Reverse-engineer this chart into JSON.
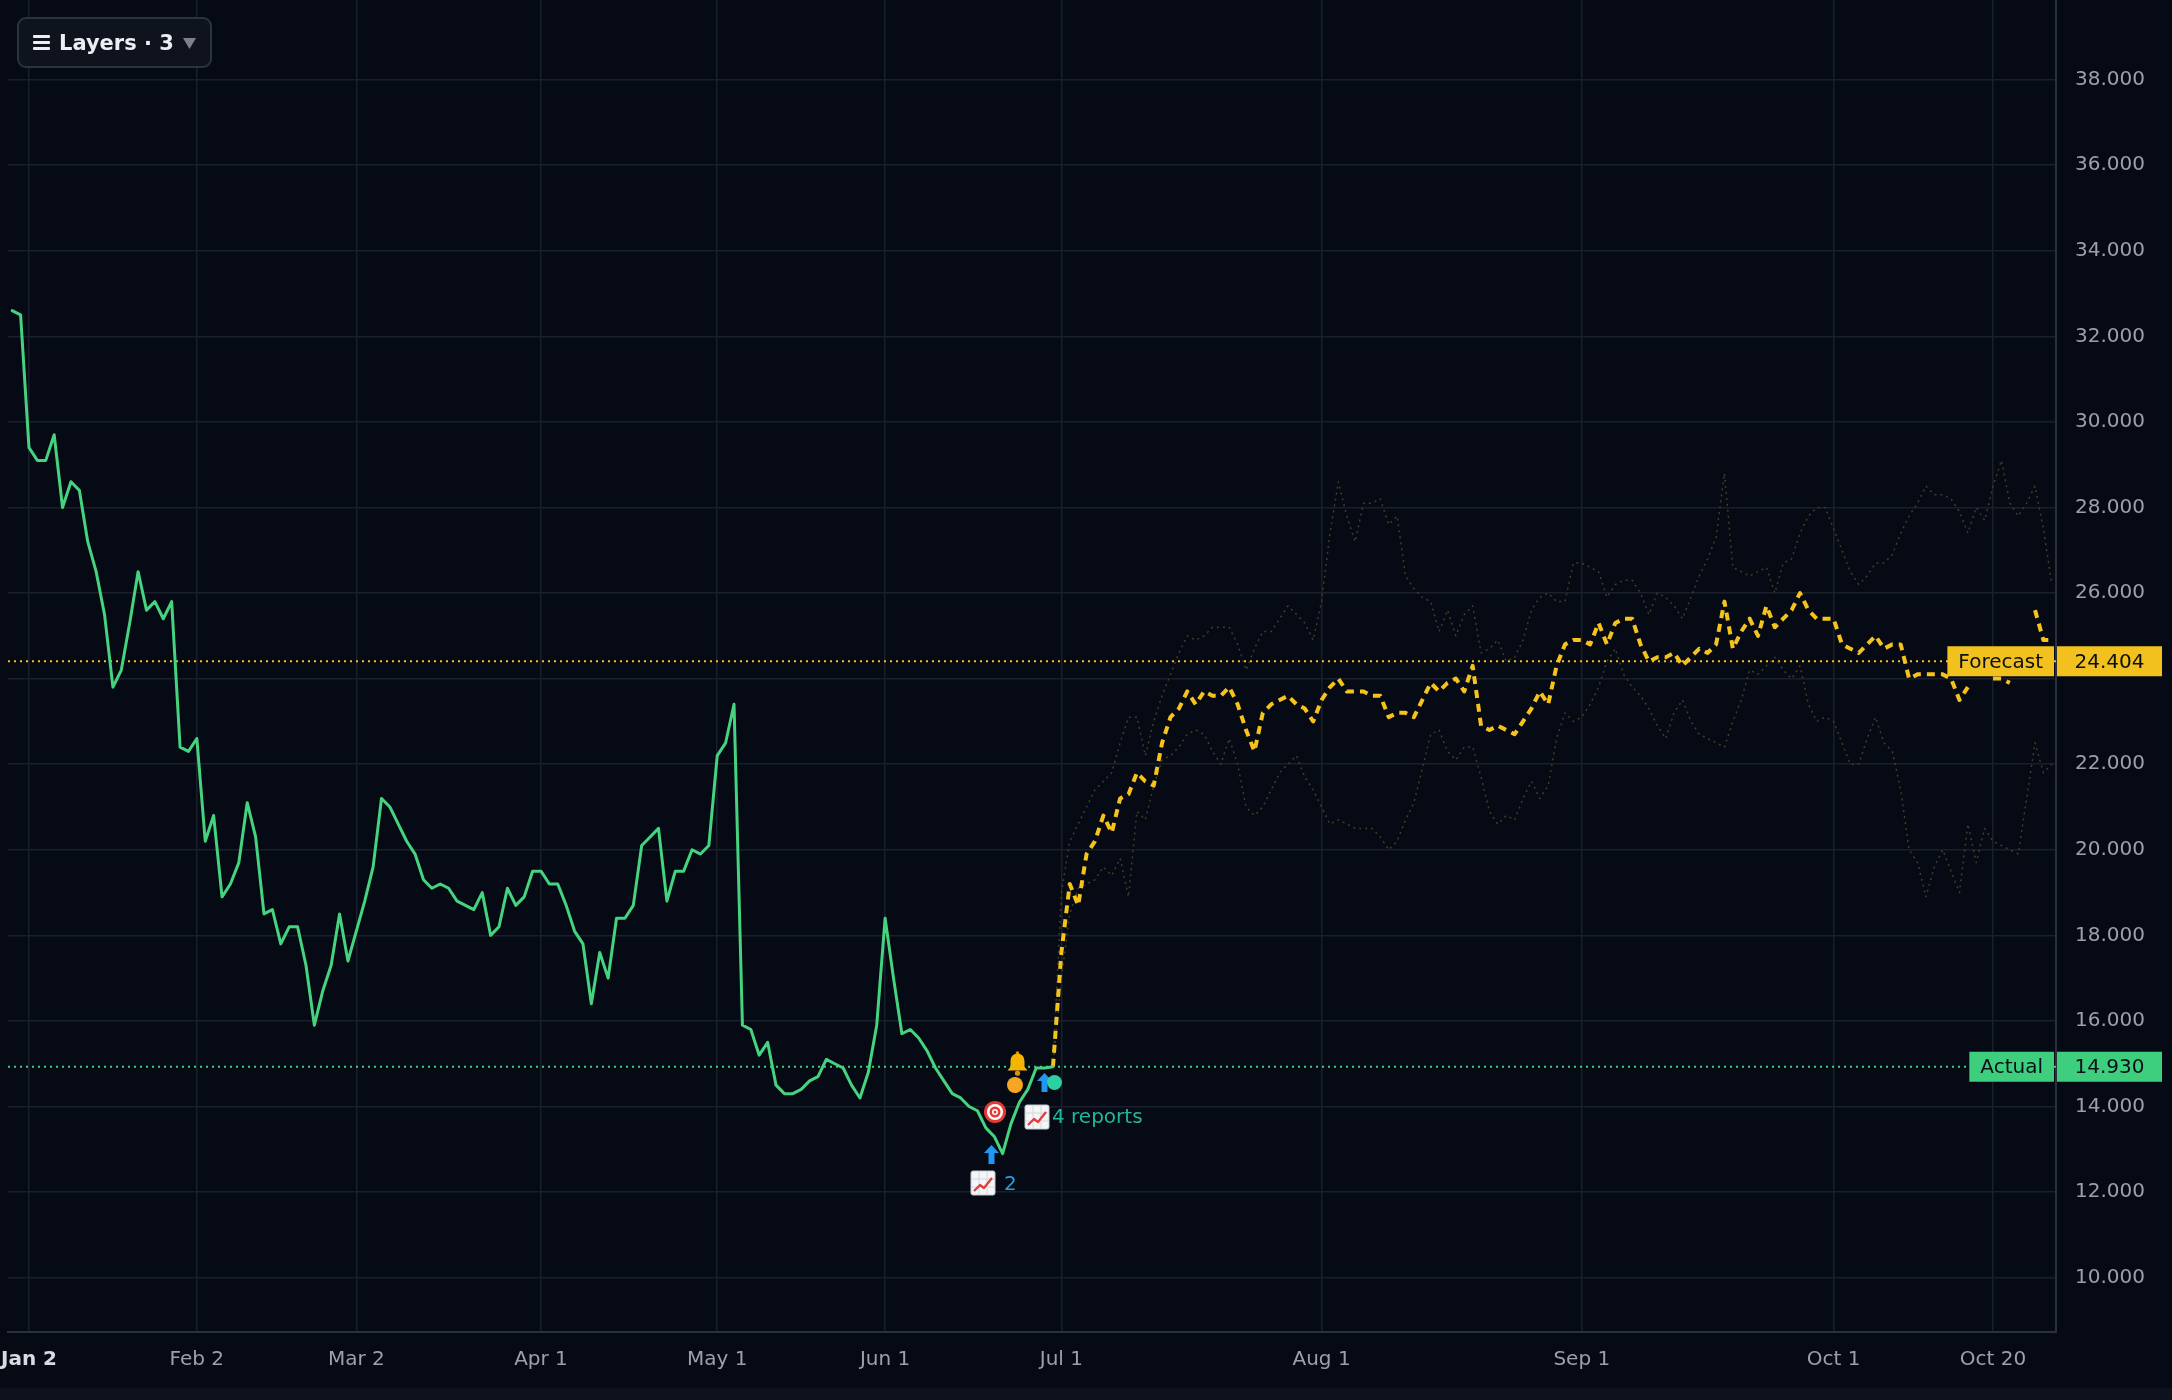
{
  "chart_data": {
    "type": "line",
    "categories": [
      null,
      null,
      "Jan 2",
      null,
      null,
      null,
      null,
      null,
      null,
      null,
      null,
      null,
      null,
      null,
      null,
      null,
      null,
      null,
      null,
      null,
      null,
      null,
      "Feb 2",
      null,
      null,
      null,
      null,
      null,
      null,
      null,
      null,
      null,
      null,
      null,
      null,
      null,
      null,
      null,
      null,
      null,
      null,
      "Mar 2",
      null,
      null,
      null,
      null,
      null,
      null,
      null,
      null,
      null,
      null,
      null,
      null,
      null,
      null,
      null,
      null,
      null,
      null,
      null,
      null,
      null,
      "Apr 1",
      null,
      null,
      null,
      null,
      null,
      null,
      null,
      null,
      null,
      null,
      null,
      null,
      null,
      null,
      null,
      null,
      null,
      null,
      null,
      null,
      "May 1",
      null,
      null,
      null,
      null,
      null,
      null,
      null,
      null,
      null,
      null,
      null,
      null,
      null,
      null,
      null,
      null,
      null,
      null,
      null,
      "Jun 1",
      null,
      null,
      null,
      null,
      null,
      null,
      null,
      null,
      null,
      null,
      null,
      null,
      null,
      null,
      null,
      null,
      null,
      null,
      null,
      null,
      "Jul 1",
      null,
      null,
      null,
      null,
      null,
      null,
      null,
      null,
      null,
      null,
      null,
      null,
      null,
      null,
      null,
      null,
      null,
      null,
      null,
      null,
      null,
      null,
      null,
      null,
      null,
      null,
      null,
      null,
      null,
      null,
      "Aug 1",
      null,
      null,
      null,
      null,
      null,
      null,
      null,
      null,
      null,
      null,
      null,
      null,
      null,
      null,
      null,
      null,
      null,
      null,
      null,
      null,
      null,
      null,
      null,
      null,
      null,
      null,
      null,
      null,
      null,
      null,
      "Sep 1",
      null,
      null,
      null,
      null,
      null,
      null,
      null,
      null,
      null,
      null,
      null,
      null,
      null,
      null,
      null,
      null,
      null,
      null,
      null,
      null,
      null,
      null,
      null,
      null,
      null,
      null,
      null,
      null,
      null,
      "Oct 1",
      null,
      null,
      null,
      null,
      null,
      null,
      null,
      null,
      null,
      null,
      null,
      null,
      null,
      null,
      null,
      null,
      null,
      null,
      "Oct 20",
      null,
      null,
      null,
      null,
      null,
      null,
      null
    ],
    "ylim": [
      8.73,
      39.86
    ],
    "yticks": [
      {
        "value": 10,
        "label": "10.000"
      },
      {
        "value": 12,
        "label": "12.000"
      },
      {
        "value": 14,
        "label": "14.000"
      },
      {
        "value": 16,
        "label": "16.000"
      },
      {
        "value": 18,
        "label": "18.000"
      },
      {
        "value": 20,
        "label": "20.000"
      },
      {
        "value": 22,
        "label": "22.000"
      },
      {
        "value": 24,
        "label": null
      },
      {
        "value": 26,
        "label": "26.000"
      },
      {
        "value": 28,
        "label": "28.000"
      },
      {
        "value": 30,
        "label": "30.000"
      },
      {
        "value": 32,
        "label": "32.000"
      },
      {
        "value": 34,
        "label": "34.000"
      },
      {
        "value": 36,
        "label": "36.000"
      },
      {
        "value": 38,
        "label": "38.000"
      }
    ],
    "series": [
      {
        "color": "#46d37f",
        "line_style": "solid",
        "values": [
          32.6,
          32.5,
          29.4,
          29.1,
          29.1,
          29.7,
          28.0,
          28.6,
          28.4,
          27.2,
          26.5,
          25.5,
          23.8,
          24.2,
          25.3,
          26.5,
          25.6,
          25.8,
          25.4,
          25.8,
          22.4,
          22.3,
          22.6,
          20.2,
          20.8,
          18.9,
          19.2,
          19.7,
          21.1,
          20.3,
          18.5,
          18.6,
          17.8,
          18.2,
          18.2,
          17.3,
          15.9,
          16.7,
          17.3,
          18.5,
          17.4,
          18.1,
          18.8,
          19.6,
          21.2,
          21.0,
          20.6,
          20.2,
          19.9,
          19.3,
          19.1,
          19.2,
          19.1,
          18.8,
          18.7,
          18.6,
          19.0,
          18.0,
          18.2,
          19.1,
          18.7,
          18.9,
          19.5,
          19.5,
          19.2,
          19.2,
          18.7,
          18.1,
          17.8,
          16.4,
          17.6,
          17.0,
          18.4,
          18.4,
          18.7,
          20.1,
          20.3,
          20.5,
          18.8,
          19.5,
          19.5,
          20.0,
          19.9,
          20.1,
          22.2,
          22.5,
          23.4,
          15.9,
          15.8,
          15.2,
          15.5,
          14.5,
          14.3,
          14.3,
          14.4,
          14.6,
          14.7,
          15.1,
          15.0,
          14.9,
          14.5,
          14.2,
          14.8,
          15.9,
          18.4,
          17.0,
          15.7,
          15.8,
          15.6,
          15.3,
          14.9,
          14.6,
          14.3,
          14.2,
          14.0,
          13.9,
          13.5,
          13.3,
          12.9,
          13.6,
          14.1,
          14.4,
          14.9,
          14.9,
          14.93,
          null,
          null,
          null,
          null,
          null,
          null,
          null,
          null,
          null,
          null,
          null,
          null,
          null,
          null,
          null,
          null,
          null,
          null,
          null,
          null,
          null,
          null,
          null,
          null,
          null,
          null,
          null,
          null,
          null,
          null,
          null,
          null,
          null,
          null,
          null,
          null,
          null,
          null,
          null,
          null,
          null,
          null,
          null,
          null,
          null,
          null,
          null,
          null,
          null,
          null,
          null,
          null,
          null,
          null,
          null,
          null,
          null,
          null,
          null,
          null,
          null,
          null,
          null,
          null,
          null,
          null,
          null,
          null,
          null,
          null,
          null,
          null,
          null,
          null,
          null,
          null,
          null,
          null,
          null,
          null,
          null,
          null,
          null,
          null,
          null,
          null,
          null,
          null,
          null,
          null,
          null,
          null,
          null,
          null,
          null,
          null,
          null,
          null,
          null,
          null,
          null,
          null,
          null,
          null,
          null,
          null,
          null,
          null,
          null,
          null,
          null,
          null,
          null,
          null,
          null,
          null,
          null,
          null,
          null
        ]
      },
      {
        "color": "#f6c31c",
        "line_style": "dashed",
        "values": [
          null,
          null,
          null,
          null,
          null,
          null,
          null,
          null,
          null,
          null,
          null,
          null,
          null,
          null,
          null,
          null,
          null,
          null,
          null,
          null,
          null,
          null,
          null,
          null,
          null,
          null,
          null,
          null,
          null,
          null,
          null,
          null,
          null,
          null,
          null,
          null,
          null,
          null,
          null,
          null,
          null,
          null,
          null,
          null,
          null,
          null,
          null,
          null,
          null,
          null,
          null,
          null,
          null,
          null,
          null,
          null,
          null,
          null,
          null,
          null,
          null,
          null,
          null,
          null,
          null,
          null,
          null,
          null,
          null,
          null,
          null,
          null,
          null,
          null,
          null,
          null,
          null,
          null,
          null,
          null,
          null,
          null,
          null,
          null,
          null,
          null,
          null,
          null,
          null,
          null,
          null,
          null,
          null,
          null,
          null,
          null,
          null,
          null,
          null,
          null,
          null,
          null,
          null,
          null,
          null,
          null,
          null,
          null,
          null,
          null,
          null,
          null,
          null,
          null,
          null,
          null,
          null,
          null,
          null,
          null,
          null,
          null,
          null,
          null,
          14.93,
          17.6,
          19.2,
          18.7,
          19.9,
          20.2,
          20.8,
          20.4,
          21.2,
          21.3,
          21.8,
          21.6,
          21.5,
          22.5,
          23.1,
          23.3,
          23.7,
          23.4,
          23.7,
          23.6,
          23.6,
          23.8,
          23.4,
          22.8,
          22.3,
          23.2,
          23.4,
          23.5,
          23.6,
          23.4,
          23.3,
          23.0,
          23.5,
          23.8,
          24.0,
          23.7,
          23.7,
          23.7,
          23.6,
          23.6,
          23.1,
          23.2,
          23.2,
          23.1,
          23.5,
          23.9,
          23.7,
          23.9,
          24.0,
          23.7,
          24.3,
          22.9,
          22.8,
          22.9,
          22.8,
          22.7,
          23.0,
          23.3,
          23.7,
          23.4,
          24.3,
          24.8,
          24.9,
          24.9,
          24.8,
          25.3,
          24.8,
          25.3,
          25.4,
          25.4,
          24.8,
          24.4,
          24.5,
          24.5,
          24.6,
          24.3,
          24.5,
          24.7,
          24.6,
          24.8,
          25.8,
          24.7,
          25.1,
          25.4,
          25.0,
          25.7,
          25.2,
          25.4,
          25.6,
          26.0,
          25.6,
          25.4,
          25.4,
          25.4,
          24.8,
          24.7,
          24.6,
          24.8,
          25.0,
          24.7,
          24.8,
          24.8,
          24.0,
          24.1,
          24.1,
          24.1,
          24.1,
          24.0,
          23.5,
          23.8,
          null,
          null,
          24.0,
          24.0,
          23.9,
          null,
          null,
          25.6,
          24.9,
          24.9
        ]
      },
      {
        "color": "#423e28",
        "line_style": "dotted",
        "values": [
          null,
          null,
          null,
          null,
          null,
          null,
          null,
          null,
          null,
          null,
          null,
          null,
          null,
          null,
          null,
          null,
          null,
          null,
          null,
          null,
          null,
          null,
          null,
          null,
          null,
          null,
          null,
          null,
          null,
          null,
          null,
          null,
          null,
          null,
          null,
          null,
          null,
          null,
          null,
          null,
          null,
          null,
          null,
          null,
          null,
          null,
          null,
          null,
          null,
          null,
          null,
          null,
          null,
          null,
          null,
          null,
          null,
          null,
          null,
          null,
          null,
          null,
          null,
          null,
          null,
          null,
          null,
          null,
          null,
          null,
          null,
          null,
          null,
          null,
          null,
          null,
          null,
          null,
          null,
          null,
          null,
          null,
          null,
          null,
          null,
          null,
          null,
          null,
          null,
          null,
          null,
          null,
          null,
          null,
          null,
          null,
          null,
          null,
          null,
          null,
          null,
          null,
          null,
          null,
          null,
          null,
          null,
          null,
          null,
          null,
          null,
          null,
          null,
          null,
          null,
          null,
          null,
          null,
          null,
          null,
          null,
          null,
          null,
          null,
          14.93,
          19.0,
          20.2,
          20.6,
          21.0,
          21.4,
          21.6,
          21.8,
          22.5,
          23.1,
          23.1,
          22.2,
          23.0,
          23.6,
          24.1,
          24.6,
          25.0,
          24.9,
          25.0,
          25.2,
          25.2,
          25.2,
          24.8,
          24.2,
          24.7,
          25.1,
          25.1,
          25.4,
          25.7,
          25.5,
          25.3,
          24.9,
          25.8,
          27.4,
          28.6,
          27.8,
          27.2,
          28.1,
          28.1,
          28.2,
          27.6,
          27.8,
          26.4,
          26.1,
          25.9,
          25.8,
          25.1,
          25.6,
          25.0,
          25.5,
          25.7,
          24.6,
          24.7,
          24.9,
          24.4,
          24.5,
          24.9,
          25.6,
          25.9,
          26.0,
          25.8,
          25.8,
          26.7,
          26.7,
          26.6,
          26.5,
          25.9,
          26.2,
          26.3,
          26.3,
          26.0,
          25.5,
          26.0,
          25.9,
          25.7,
          25.4,
          25.9,
          26.4,
          26.8,
          27.3,
          28.8,
          26.6,
          26.5,
          26.4,
          26.5,
          26.6,
          26.0,
          26.7,
          26.8,
          27.4,
          27.8,
          28.0,
          28.0,
          27.5,
          27.0,
          26.5,
          26.2,
          26.4,
          26.7,
          26.7,
          26.9,
          27.4,
          27.8,
          28.1,
          28.5,
          28.3,
          28.3,
          28.2,
          27.9,
          27.4,
          28.0,
          27.7,
          28.5,
          29.1,
          28.1,
          27.8,
          28.1,
          28.5,
          27.5,
          26.2
        ]
      },
      {
        "color": "#423e28",
        "line_style": "dotted",
        "values": [
          null,
          null,
          null,
          null,
          null,
          null,
          null,
          null,
          null,
          null,
          null,
          null,
          null,
          null,
          null,
          null,
          null,
          null,
          null,
          null,
          null,
          null,
          null,
          null,
          null,
          null,
          null,
          null,
          null,
          null,
          null,
          null,
          null,
          null,
          null,
          null,
          null,
          null,
          null,
          null,
          null,
          null,
          null,
          null,
          null,
          null,
          null,
          null,
          null,
          null,
          null,
          null,
          null,
          null,
          null,
          null,
          null,
          null,
          null,
          null,
          null,
          null,
          null,
          null,
          null,
          null,
          null,
          null,
          null,
          null,
          null,
          null,
          null,
          null,
          null,
          null,
          null,
          null,
          null,
          null,
          null,
          null,
          null,
          null,
          null,
          null,
          null,
          null,
          null,
          null,
          null,
          null,
          null,
          null,
          null,
          null,
          null,
          null,
          null,
          null,
          null,
          null,
          null,
          null,
          null,
          null,
          null,
          null,
          null,
          null,
          null,
          null,
          null,
          null,
          null,
          null,
          null,
          null,
          null,
          null,
          null,
          null,
          null,
          null,
          14.93,
          17.0,
          18.5,
          19.1,
          19.2,
          19.3,
          19.6,
          19.4,
          19.8,
          18.9,
          20.9,
          20.7,
          21.5,
          22.1,
          22.2,
          22.4,
          22.7,
          22.8,
          22.7,
          22.3,
          22.0,
          22.6,
          22.0,
          21.0,
          20.8,
          21.0,
          21.4,
          21.8,
          22.0,
          22.2,
          21.7,
          21.4,
          21.0,
          20.6,
          20.7,
          20.6,
          20.5,
          20.5,
          20.5,
          20.3,
          20.0,
          20.2,
          20.7,
          21.1,
          21.9,
          22.7,
          22.8,
          22.3,
          22.1,
          22.4,
          22.4,
          21.7,
          20.9,
          20.6,
          20.8,
          20.7,
          21.2,
          21.6,
          21.2,
          21.5,
          22.6,
          23.2,
          23.0,
          23.1,
          23.4,
          23.8,
          24.4,
          24.7,
          24.1,
          23.8,
          23.6,
          23.3,
          22.9,
          22.6,
          23.2,
          23.5,
          23.0,
          22.7,
          22.6,
          22.5,
          22.4,
          23.0,
          23.5,
          24.2,
          24.1,
          24.3,
          24.5,
          24.2,
          24.0,
          24.3,
          23.4,
          23.0,
          23.1,
          23.0,
          22.5,
          22.0,
          22.0,
          22.6,
          23.1,
          22.5,
          22.3,
          21.4,
          20.0,
          19.7,
          18.9,
          19.6,
          20.0,
          19.5,
          19.0,
          20.6,
          19.7,
          20.5,
          20.2,
          20.1,
          20.0,
          19.9,
          21.2,
          22.5,
          21.8,
          22.0
        ]
      }
    ],
    "ref_lines": [
      {
        "axis": "y",
        "value": 24.404,
        "label": "Forecast",
        "color": "#f2c11d",
        "line_style": "dotted"
      },
      {
        "axis": "y",
        "value": 14.93,
        "label": "Actual",
        "color": "#3ecf7e",
        "line_style": "dotted"
      }
    ],
    "annotations": [
      "Layers · 3",
      "4 reports",
      "2",
      "24.404",
      "14.930"
    ],
    "grid": true
  }
}
